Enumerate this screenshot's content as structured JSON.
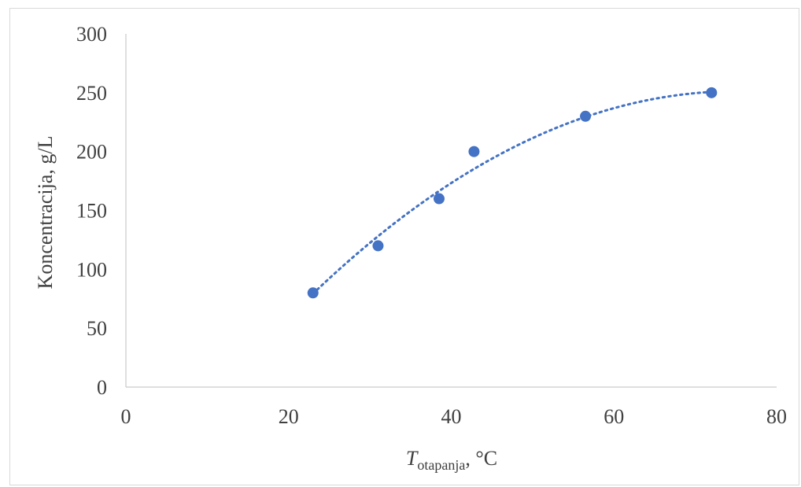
{
  "chart_data": {
    "type": "scatter",
    "title": "",
    "xlabel": {
      "main": "T",
      "subscript": "otapanja",
      "suffix": ", °C"
    },
    "ylabel": "Koncentracija, g/L",
    "xlim": [
      0,
      80
    ],
    "ylim": [
      0,
      300
    ],
    "xticks": [
      0,
      20,
      40,
      60,
      80
    ],
    "yticks": [
      0,
      50,
      100,
      150,
      200,
      250,
      300
    ],
    "grid": false,
    "legend": "none",
    "series": [
      {
        "points": [
          {
            "x": 23,
            "y": 80
          },
          {
            "x": 31,
            "y": 120
          },
          {
            "x": 38.5,
            "y": 160
          },
          {
            "x": 42.8,
            "y": 200
          },
          {
            "x": 56.5,
            "y": 230
          },
          {
            "x": 72,
            "y": 250
          }
        ],
        "trendline": {
          "type": "polynomial",
          "style": "dotted",
          "x_from": 23,
          "x_to": 72,
          "curve": [
            {
              "x": 23,
              "y": 80
            },
            {
              "x": 30,
              "y": 122
            },
            {
              "x": 40,
              "y": 172
            },
            {
              "x": 50,
              "y": 212
            },
            {
              "x": 60,
              "y": 238
            },
            {
              "x": 72,
              "y": 250
            }
          ]
        }
      }
    ],
    "colors": {
      "marker": "#4472C4",
      "axis": "#bfbfbf",
      "text": "#404040"
    }
  }
}
